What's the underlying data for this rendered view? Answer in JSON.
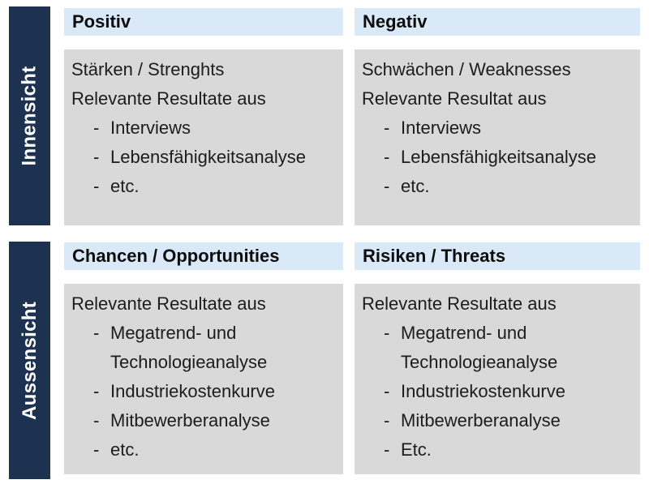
{
  "title": "SWOT analysis matrix (German)",
  "colors": {
    "row_label_bar": "#1d3250",
    "header_band": "#d9e9f8",
    "cell_background": "#d9d9d9",
    "body_text": "#1c1c1c",
    "row_label_text": "#ffffff",
    "page_background": "#ffffff"
  },
  "bullet_marker": "-",
  "rows": [
    {
      "label": "Innensicht"
    },
    {
      "label": "Aussensicht"
    }
  ],
  "quadrants": [
    {
      "id": "strengths",
      "header": "Positiv",
      "intro": [
        "Stärken / Strenghts",
        "Relevante Resultate aus"
      ],
      "bullets": [
        "Interviews",
        "Lebensfähigkeitsanalyse",
        "etc."
      ]
    },
    {
      "id": "weaknesses",
      "header": "Negativ",
      "intro": [
        "Schwächen / Weaknesses",
        "Relevante Resultat aus"
      ],
      "bullets": [
        "Interviews",
        "Lebensfähigkeitsanalyse",
        "etc."
      ]
    },
    {
      "id": "opportunities",
      "header": "Chancen / Opportunities",
      "intro": [
        "Relevante Resultate aus"
      ],
      "bullets": [
        "Megatrend- und Technologieanalyse",
        "Industriekostenkurve",
        "Mitbewerberanalyse",
        "etc."
      ]
    },
    {
      "id": "threats",
      "header": "Risiken / Threats",
      "intro": [
        "Relevante Resultate aus"
      ],
      "bullets": [
        "Megatrend- und Technologieanalyse",
        "Industriekostenkurve",
        "Mitbewerberanalyse",
        "Etc."
      ]
    }
  ]
}
